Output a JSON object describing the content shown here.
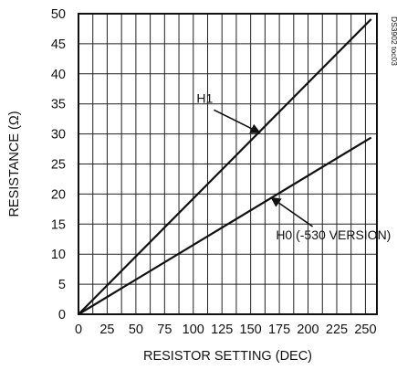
{
  "chart_data": {
    "type": "line",
    "title": "",
    "xlabel": "RESISTOR SETTING (DEC)",
    "ylabel": "RESISTANCE (Ω)",
    "xlim": [
      0,
      260
    ],
    "ylim": [
      0,
      50
    ],
    "grid": true,
    "x_ticks": [
      "0",
      "25",
      "50",
      "75",
      "100",
      "125",
      "150",
      "175",
      "200",
      "225",
      "250"
    ],
    "y_ticks": [
      "0",
      "5",
      "10",
      "15",
      "20",
      "25",
      "30",
      "35",
      "40",
      "45",
      "50"
    ],
    "series": [
      {
        "name": "H1",
        "x": [
          0,
          255
        ],
        "y": [
          0,
          49.1
        ]
      },
      {
        "name": "H0 (-530 VERSION)",
        "x": [
          0,
          255
        ],
        "y": [
          0,
          29.4
        ]
      }
    ],
    "annotations": [
      {
        "text": "H1",
        "series": "H1",
        "arrow_to": [
          158,
          30.2
        ]
      },
      {
        "text": "H0 (-530 VERSION)",
        "series": "H0 (-530 VERSION)",
        "arrow_to": [
          168,
          19.4
        ]
      }
    ],
    "document_id": "DS3902 toc03"
  }
}
